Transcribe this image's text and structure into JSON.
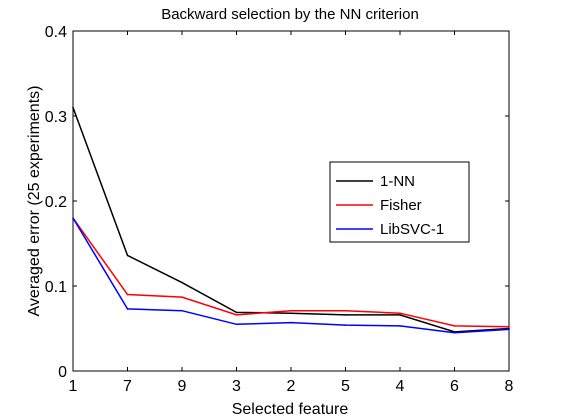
{
  "chart_data": {
    "type": "line",
    "title": "Backward selection by the NN criterion",
    "xlabel": "Selected feature",
    "ylabel": "Averaged error (25 experiments)",
    "categories": [
      "1",
      "7",
      "9",
      "3",
      "2",
      "5",
      "4",
      "6",
      "8"
    ],
    "ylim": [
      0,
      0.4
    ],
    "yticks": [
      "0",
      "0.1",
      "0.2",
      "0.3",
      "0.4"
    ],
    "grid": false,
    "legend_position": "right",
    "series": [
      {
        "name": "1-NN",
        "color": "#000000",
        "values": [
          0.31,
          0.136,
          0.104,
          0.069,
          0.068,
          0.066,
          0.066,
          0.046,
          0.05
        ]
      },
      {
        "name": "Fisher",
        "color": "#ff0000",
        "values": [
          0.18,
          0.09,
          0.087,
          0.066,
          0.071,
          0.071,
          0.068,
          0.053,
          0.052
        ]
      },
      {
        "name": "LibSVC-1",
        "color": "#0000ff",
        "values": [
          0.18,
          0.073,
          0.071,
          0.055,
          0.057,
          0.054,
          0.053,
          0.045,
          0.049
        ]
      }
    ]
  }
}
